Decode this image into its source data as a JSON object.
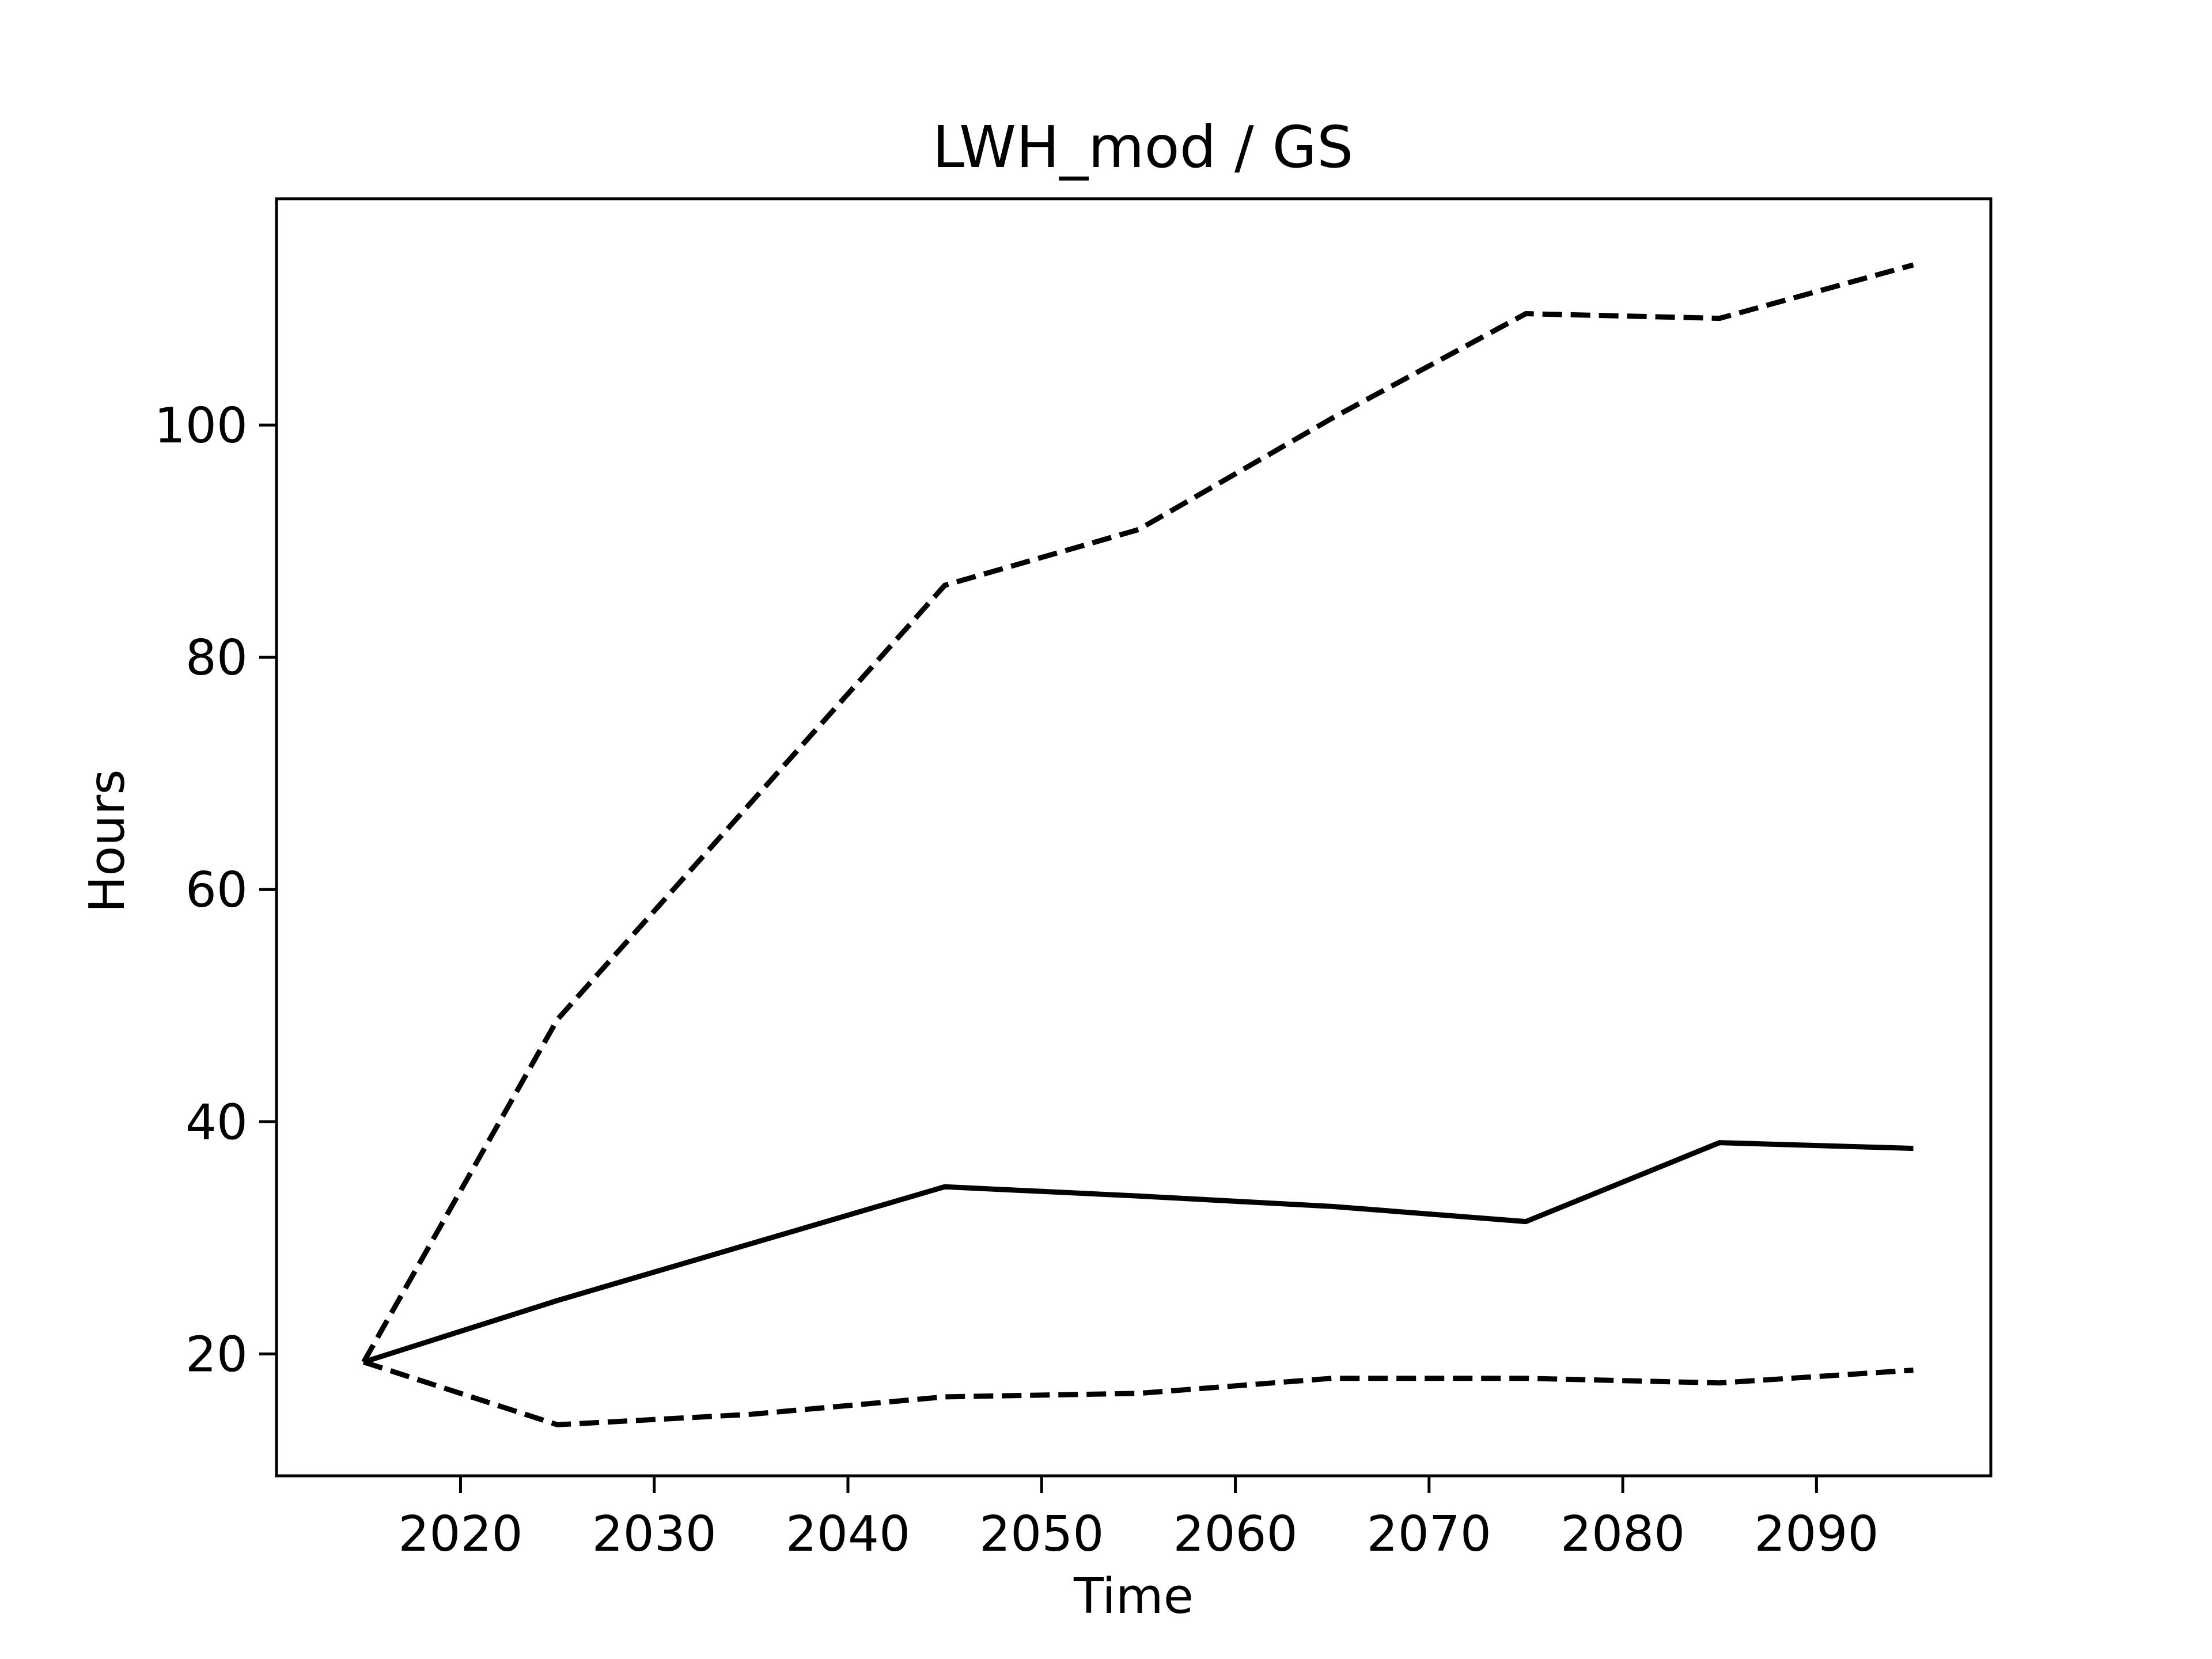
{
  "chart_data": {
    "type": "line",
    "title": "LWH_mod / GS",
    "xlabel": "Time",
    "ylabel": "Hours",
    "xlim": [
      2010.5,
      2099
    ],
    "ylim": [
      9.5,
      119.5
    ],
    "xticks": [
      2020,
      2030,
      2040,
      2050,
      2060,
      2070,
      2080,
      2090
    ],
    "yticks": [
      20,
      40,
      60,
      80,
      100
    ],
    "grid": false,
    "legend": "none",
    "x": [
      2015,
      2025,
      2035,
      2045,
      2055,
      2065,
      2075,
      2085,
      2095
    ],
    "series": [
      {
        "values": [
          19.3,
          24.6,
          29.5,
          34.4,
          33.6,
          32.7,
          31.4,
          38.2,
          37.7
        ],
        "style": "solid",
        "color": "#000000"
      },
      {
        "values": [
          19.3,
          48.8,
          67.5,
          86.2,
          91.0,
          100.6,
          109.6,
          109.2,
          113.8
        ],
        "style": "dashed",
        "color": "#000000"
      },
      {
        "values": [
          19.3,
          13.9,
          14.8,
          16.3,
          16.6,
          17.9,
          17.9,
          17.5,
          18.6
        ],
        "style": "dashed",
        "color": "#000000"
      }
    ]
  }
}
